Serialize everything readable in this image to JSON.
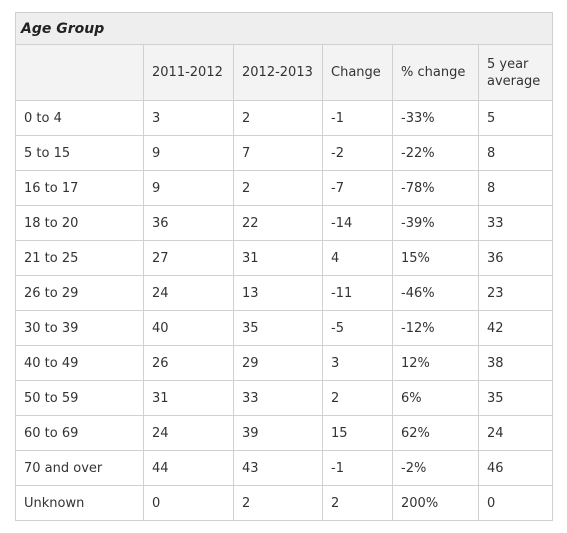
{
  "table": {
    "title": "Age Group",
    "header": [
      "2011-2012",
      "2012-2013",
      "Change",
      "% change",
      "5 year average"
    ],
    "rows": [
      [
        "0 to 4",
        "3",
        "2",
        "-1",
        "-33%",
        "5"
      ],
      [
        "5 to 15",
        "9",
        "7",
        "-2",
        "-22%",
        "8"
      ],
      [
        "16 to 17",
        "9",
        "2",
        "-7",
        "-78%",
        "8"
      ],
      [
        "18 to 20",
        "36",
        "22",
        "-14",
        "-39%",
        "33"
      ],
      [
        "21 to 25",
        "27",
        "31",
        "4",
        "15%",
        "36"
      ],
      [
        "26 to 29",
        "24",
        "13",
        "-11",
        "-46%",
        "23"
      ],
      [
        "30 to 39",
        "40",
        "35",
        "-5",
        "-12%",
        "42"
      ],
      [
        "40 to 49",
        "26",
        "29",
        "3",
        "12%",
        "38"
      ],
      [
        "50 to 59",
        "31",
        "33",
        "2",
        "6%",
        "35"
      ],
      [
        "60 to 69",
        "24",
        "39",
        "15",
        "62%",
        "24"
      ],
      [
        "70 and over",
        "44",
        "43",
        "-1",
        "-2%",
        "46"
      ],
      [
        "Unknown",
        "0",
        "2",
        "2",
        "200%",
        "0"
      ]
    ]
  }
}
